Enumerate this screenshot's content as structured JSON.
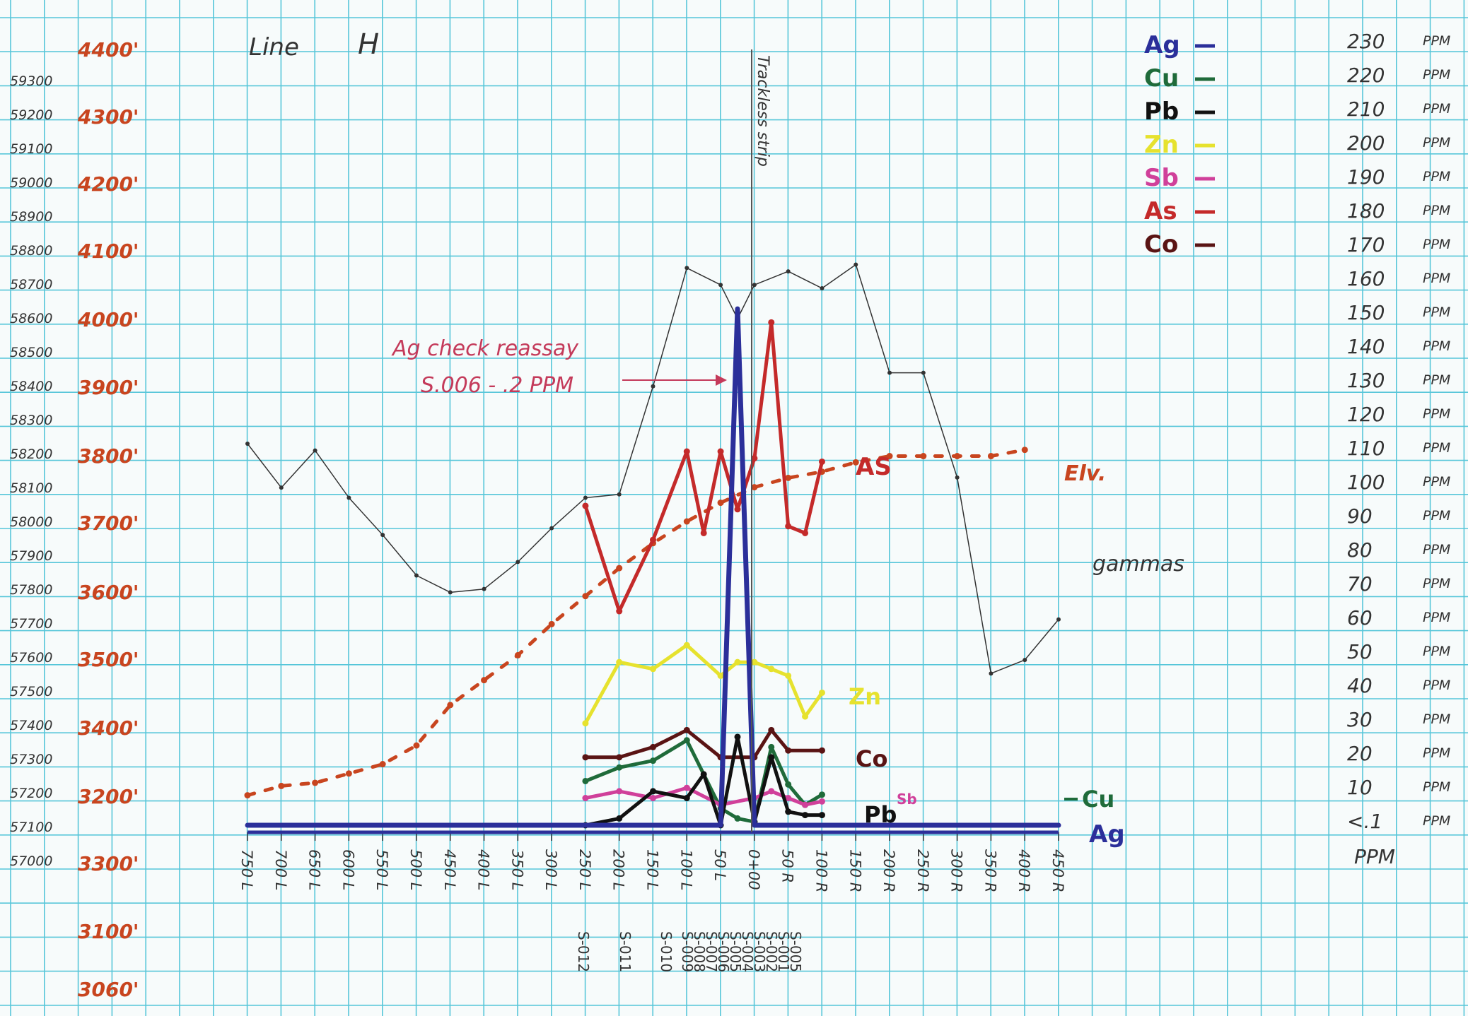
{
  "header": {
    "line_label": "Line",
    "line_id": "H"
  },
  "chart_data": {
    "type": "line",
    "title": "",
    "xlabel": "",
    "ylabel": "",
    "grid": true,
    "x_ticks": [
      "750 L",
      "700 L",
      "650 L",
      "600 L",
      "550 L",
      "500 L",
      "450 L",
      "400 L",
      "350 L",
      "300 L",
      "250 L",
      "200 L",
      "150 L",
      "100 L",
      "50 L",
      "0+00",
      "50 R",
      "100 R",
      "150 R",
      "200 R",
      "250 R",
      "300 R",
      "350 R",
      "400 R",
      "450 R"
    ],
    "x_range": [
      -750,
      450
    ],
    "left_axis_gammas": {
      "ticks": [
        "59300",
        "59200",
        "59100",
        "59000",
        "58900",
        "58800",
        "58700",
        "58600",
        "58500",
        "58400",
        "58300",
        "58200",
        "58100",
        "58000",
        "57900",
        "57800",
        "57700",
        "57600",
        "57500",
        "57400",
        "57300",
        "57200",
        "57100",
        "57000"
      ],
      "range": [
        57000,
        59300
      ]
    },
    "left_axis_elevation": {
      "ticks": [
        "4400'",
        "4300'",
        "4200'",
        "4100'",
        "4000'",
        "3900'",
        "3800'",
        "3700'",
        "3600'",
        "3500'",
        "3400'",
        "3200'",
        "3300'",
        "3100'",
        "3060'"
      ]
    },
    "right_axis_ppm": {
      "ticks": [
        "230",
        "220",
        "210",
        "200",
        "190",
        "180",
        "170",
        "160",
        "150",
        "140",
        "130",
        "120",
        "110",
        "100",
        "90",
        "80",
        "70",
        "60",
        "50",
        "40",
        "30",
        "20",
        "10",
        "<.1"
      ],
      "unit": "PPM",
      "range": [
        0,
        230
      ]
    },
    "legend": {
      "placement": "top-right",
      "items": [
        {
          "label": "Ag",
          "color": "#2b2f9a"
        },
        {
          "label": "Cu",
          "color": "#1f6b3a"
        },
        {
          "label": "Pb",
          "color": "#111111"
        },
        {
          "label": "Zn",
          "color": "#e6e22e"
        },
        {
          "label": "Sb",
          "color": "#d0409a"
        },
        {
          "label": "As",
          "color": "#c42a2a"
        },
        {
          "label": "Co",
          "color": "#5a1414"
        }
      ]
    },
    "series": [
      {
        "name": "gammas",
        "axis": "gammas",
        "color": "#333333",
        "style": "thin",
        "x": [
          -750,
          -700,
          -650,
          -600,
          -550,
          -500,
          -450,
          -400,
          -350,
          -300,
          -250,
          -200,
          -150,
          -100,
          -50,
          -25,
          0,
          50,
          100,
          150,
          200,
          250,
          300,
          350,
          400,
          450
        ],
        "y": [
          58150,
          58020,
          58130,
          57990,
          57880,
          57760,
          57710,
          57720,
          57800,
          57900,
          57990,
          58000,
          58320,
          58670,
          58620,
          58520,
          58620,
          58660,
          58610,
          58680,
          58360,
          58360,
          58050,
          57470,
          57510,
          57630
        ]
      },
      {
        "name": "Elv.",
        "axis": "elevation",
        "color": "#c8451f",
        "style": "dotted",
        "x": [
          -750,
          -700,
          -650,
          -600,
          -550,
          -500,
          -450,
          -400,
          -350,
          -300,
          -250,
          -200,
          -150,
          -100,
          -50,
          0,
          50,
          100,
          150,
          200,
          250,
          300,
          350,
          400
        ],
        "y": [
          3205,
          3220,
          3225,
          3240,
          3255,
          3285,
          3350,
          3390,
          3430,
          3480,
          3525,
          3570,
          3610,
          3645,
          3675,
          3700,
          3715,
          3725,
          3740,
          3750,
          3750,
          3750,
          3750,
          3760
        ]
      },
      {
        "name": "AS",
        "axis": "ppm",
        "color": "#c42a2a",
        "x": [
          -250,
          -200,
          -150,
          -100,
          -75,
          -50,
          -25,
          0,
          25,
          50,
          75,
          100
        ],
        "y": [
          94,
          63,
          84,
          110,
          86,
          110,
          93,
          108,
          148,
          88,
          86,
          107
        ]
      },
      {
        "name": "Zn",
        "axis": "ppm",
        "color": "#e6e22e",
        "x": [
          -250,
          -200,
          -150,
          -100,
          -50,
          -25,
          0,
          25,
          50,
          75,
          100
        ],
        "y": [
          30,
          48,
          46,
          53,
          44,
          48,
          48,
          46,
          44,
          32,
          39
        ]
      },
      {
        "name": "Co",
        "axis": "ppm",
        "color": "#5a1414",
        "x": [
          -250,
          -200,
          -150,
          -100,
          -50,
          0,
          25,
          50,
          100
        ],
        "y": [
          20,
          20,
          23,
          28,
          20,
          20,
          28,
          22,
          22
        ]
      },
      {
        "name": "Cu",
        "axis": "ppm",
        "color": "#1f6b3a",
        "x": [
          -250,
          -200,
          -150,
          -100,
          -50,
          -25,
          0,
          25,
          50,
          75,
          100
        ],
        "y": [
          13,
          17,
          19,
          25,
          5,
          2,
          1,
          23,
          12,
          6,
          9
        ]
      },
      {
        "name": "Sb",
        "axis": "ppm",
        "color": "#d0409a",
        "x": [
          -250,
          -200,
          -150,
          -100,
          -50,
          0,
          25,
          50,
          75,
          100
        ],
        "y": [
          8,
          10,
          8,
          11,
          6,
          8,
          10,
          8,
          6,
          7
        ]
      },
      {
        "name": "Pb",
        "axis": "ppm",
        "color": "#111111",
        "x": [
          -250,
          -200,
          -150,
          -100,
          -75,
          -50,
          -25,
          0,
          25,
          50,
          75,
          100
        ],
        "y": [
          0,
          2,
          10,
          8,
          15,
          0,
          26,
          1,
          20,
          4,
          3,
          3
        ]
      },
      {
        "name": "Ag",
        "axis": "ppm",
        "color": "#2b2f9a",
        "style": "thick",
        "x": [
          -750,
          -50,
          -25,
          0,
          450
        ],
        "y": [
          0,
          0,
          152,
          0,
          0
        ]
      }
    ],
    "series_labels": [
      "AS",
      "Elv.",
      "gammas",
      "Zn",
      "Co",
      "Cu",
      "Pb",
      "Sb",
      "Ag"
    ],
    "annotations": [
      {
        "text": "Ag check reassay",
        "color": "#c43a5a"
      },
      {
        "text": "S.006 - .2 PPM",
        "color": "#c43a5a"
      },
      {
        "text": "Trackless strip",
        "color": "#333333"
      }
    ],
    "sample_ids": [
      "S-012",
      "S-011",
      "S-010",
      "S-009",
      "S-008",
      "S-007",
      "S-006",
      "S-005",
      "S-004",
      "S-003",
      "S-002",
      "S-001",
      "S-005"
    ]
  }
}
